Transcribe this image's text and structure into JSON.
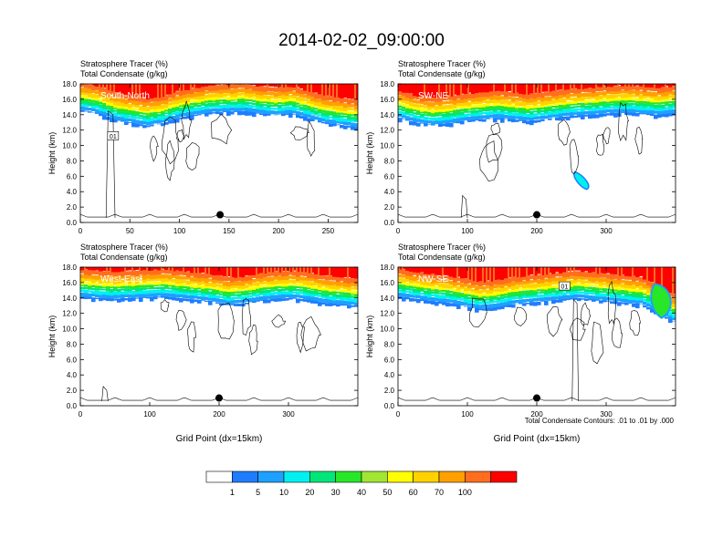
{
  "title": "2014-02-02_09:00:00",
  "colors": {
    "axis": "#000000",
    "contour": "#000000",
    "levels": [
      "#ffffff",
      "#1e7dff",
      "#1ea0ff",
      "#00f0f0",
      "#00e678",
      "#28e628",
      "#a0e632",
      "#ffff00",
      "#ffd200",
      "#ffa000",
      "#ff6e1e",
      "#ff0000"
    ]
  },
  "colorbar": {
    "labels": [
      "1",
      "5",
      "10",
      "20",
      "30",
      "40",
      "50",
      "60",
      "70",
      "100"
    ]
  },
  "footnote": "Total Condensate Contours: .01 to .01 by .000",
  "chart_data": [
    {
      "type": "heatmap",
      "panel_label": "South-North",
      "title_line1": "Stratosphere Tracer   (%)",
      "title_line2": "Total Condensate   (g/kg)",
      "ylabel": "Height (km)",
      "xlabel": "",
      "x_range": [
        0,
        280
      ],
      "y_range": [
        0,
        18
      ],
      "x_ticks": [
        "0",
        "50",
        "100",
        "150",
        "200",
        "250"
      ],
      "x_tick_values": [
        0,
        50,
        100,
        150,
        200,
        250
      ],
      "y_ticks": [
        "0.0",
        "2.0",
        "4.0",
        "6.0",
        "8.0",
        "10.0",
        "12.0",
        "14.0",
        "16.0",
        "18.0"
      ],
      "y_tick_values": [
        0,
        2,
        4,
        6,
        8,
        10,
        12,
        14,
        16,
        18
      ],
      "tropopause_km": [
        16.2,
        15.8,
        15.0,
        14.6,
        14.2,
        14.5,
        15.2,
        15.6,
        15.9,
        16.0,
        16.1,
        15.8,
        15.6,
        15.8,
        15.2,
        14.6,
        14.3,
        14.0
      ],
      "marker": {
        "x": 141,
        "y": 1.0
      },
      "contour_box_label": "01",
      "contour_box": {
        "x": 33,
        "y": 11.2
      }
    },
    {
      "type": "heatmap",
      "panel_label": "SW-NE",
      "title_line1": "Stratosphere Tracer   (%)",
      "title_line2": "Total Condensate   (g/kg)",
      "ylabel": "Height (km)",
      "xlabel": "",
      "x_range": [
        0,
        400
      ],
      "y_range": [
        0,
        18
      ],
      "x_ticks": [
        "0",
        "100",
        "200",
        "300"
      ],
      "x_tick_values": [
        0,
        100,
        200,
        300
      ],
      "y_ticks": [
        "0.0",
        "2.0",
        "4.0",
        "6.0",
        "8.0",
        "10.0",
        "12.0",
        "14.0",
        "16.0",
        "18.0"
      ],
      "y_tick_values": [
        0,
        2,
        4,
        6,
        8,
        10,
        12,
        14,
        16,
        18
      ],
      "tropopause_km": [
        15.2,
        14.6,
        14.3,
        14.5,
        14.8,
        15.0,
        15.2,
        15.0,
        14.8,
        15.0,
        15.3,
        15.5,
        15.6,
        15.8,
        15.9,
        15.8,
        15.6,
        15.8
      ],
      "marker": {
        "x": 200,
        "y": 1.0
      },
      "contour_box_label": "",
      "contour_box": null
    },
    {
      "type": "heatmap",
      "panel_label": "West-East",
      "title_line1": "Stratosphere Tracer   (%)",
      "title_line2": "Total Condensate   (g/kg)",
      "ylabel": "Height (km)",
      "xlabel": "Grid Point (dx=15km)",
      "x_range": [
        0,
        400
      ],
      "y_range": [
        0,
        18
      ],
      "x_ticks": [
        "0",
        "100",
        "200",
        "300"
      ],
      "x_tick_values": [
        0,
        100,
        200,
        300
      ],
      "y_ticks": [
        "0.0",
        "2.0",
        "4.0",
        "6.0",
        "8.0",
        "10.0",
        "12.0",
        "14.0",
        "16.0",
        "18.0"
      ],
      "y_tick_values": [
        0,
        2,
        4,
        6,
        8,
        10,
        12,
        14,
        16,
        18
      ],
      "tropopause_km": [
        15.8,
        15.6,
        15.5,
        15.6,
        15.7,
        15.8,
        15.6,
        15.4,
        15.2,
        14.8,
        14.9,
        15.3,
        15.5,
        15.6,
        15.4,
        15.0,
        14.8,
        14.6
      ],
      "marker": {
        "x": 200,
        "y": 1.0
      },
      "contour_box_label": "",
      "contour_box": null
    },
    {
      "type": "heatmap",
      "panel_label": "NW-SE",
      "title_line1": "Stratosphere Tracer   (%)",
      "title_line2": "Total Condensate   (g/kg)",
      "ylabel": "Height (km)",
      "xlabel": "Grid Point (dx=15km)",
      "x_range": [
        0,
        400
      ],
      "y_range": [
        0,
        18
      ],
      "x_ticks": [
        "0",
        "100",
        "200",
        "300"
      ],
      "x_tick_values": [
        0,
        100,
        200,
        300
      ],
      "y_ticks": [
        "0.0",
        "2.0",
        "4.0",
        "6.0",
        "8.0",
        "10.0",
        "12.0",
        "14.0",
        "16.0",
        "18.0"
      ],
      "y_tick_values": [
        0,
        2,
        4,
        6,
        8,
        10,
        12,
        14,
        16,
        18
      ],
      "tropopause_km": [
        15.8,
        15.5,
        15.2,
        15.0,
        14.6,
        14.2,
        14.4,
        14.8,
        15.0,
        15.2,
        15.4,
        15.6,
        15.4,
        15.2,
        15.0,
        14.8,
        13.8,
        12.6
      ],
      "marker": {
        "x": 200,
        "y": 1.0
      },
      "contour_box_label": "01",
      "contour_box": {
        "x": 240,
        "y": 15.5
      }
    }
  ]
}
